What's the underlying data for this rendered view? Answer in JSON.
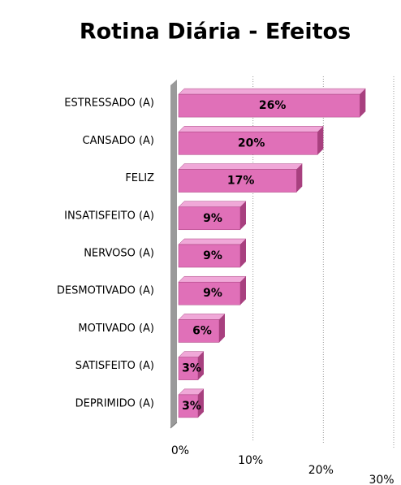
{
  "chart_data": {
    "type": "bar",
    "orientation": "horizontal",
    "title": "Rotina Diária - Efeitos",
    "categories": [
      "ESTRESSADO (A)",
      "CANSADO (A)",
      "FELIZ",
      "INSATISFEITO (A)",
      "NERVOSO (A)",
      "DESMOTIVADO (A)",
      "MOTIVADO (A)",
      "SATISFEITO (A)",
      "DEPRIMIDO (A)"
    ],
    "values": [
      26,
      20,
      17,
      9,
      9,
      9,
      6,
      3,
      3
    ],
    "value_labels": [
      "26%",
      "20%",
      "17%",
      "9%",
      "9%",
      "9%",
      "6%",
      "3%",
      "3%"
    ],
    "color": "#e070b8",
    "xlim": [
      0,
      30
    ],
    "xticks": [
      {
        "value": 0,
        "label": "0%"
      },
      {
        "value": 10,
        "label": "10%"
      },
      {
        "value": 20,
        "label": "20%"
      },
      {
        "value": 30,
        "label": "30%"
      }
    ],
    "grid": true
  }
}
